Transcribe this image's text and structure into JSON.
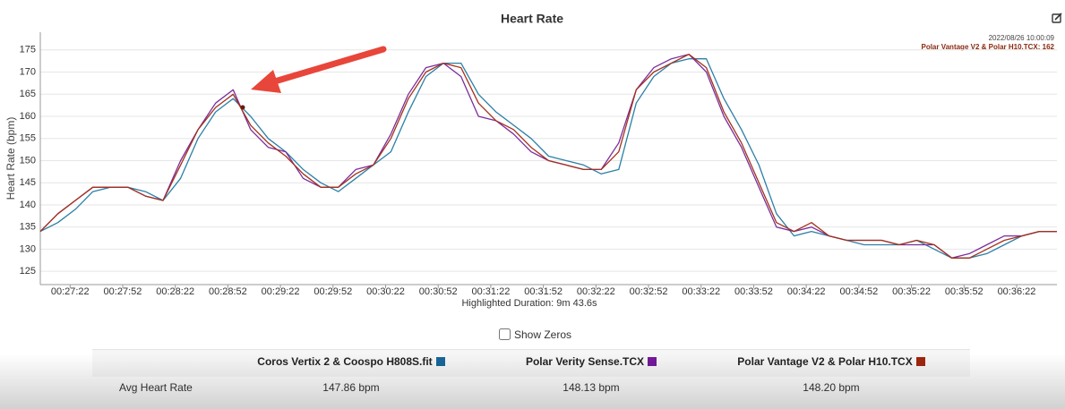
{
  "chart_data": {
    "type": "line",
    "title": "Heart Rate",
    "y_label": "Heart Rate (bpm)",
    "x_label": "Highlighted Duration: 9m 43.6s",
    "x": [
      "00:27:05",
      "00:27:15",
      "00:27:25",
      "00:27:35",
      "00:27:45",
      "00:27:55",
      "00:28:05",
      "00:28:15",
      "00:28:25",
      "00:28:35",
      "00:28:45",
      "00:28:55",
      "00:29:05",
      "00:29:15",
      "00:29:25",
      "00:29:35",
      "00:29:45",
      "00:29:55",
      "00:30:05",
      "00:30:15",
      "00:30:25",
      "00:30:35",
      "00:30:45",
      "00:30:55",
      "00:31:05",
      "00:31:15",
      "00:31:25",
      "00:31:35",
      "00:31:45",
      "00:31:55",
      "00:32:05",
      "00:32:15",
      "00:32:25",
      "00:32:35",
      "00:32:45",
      "00:32:55",
      "00:33:05",
      "00:33:15",
      "00:33:25",
      "00:33:35",
      "00:33:45",
      "00:33:55",
      "00:34:05",
      "00:34:15",
      "00:34:25",
      "00:34:35",
      "00:34:45",
      "00:34:55",
      "00:35:05",
      "00:35:15",
      "00:35:25",
      "00:35:35",
      "00:35:45",
      "00:35:55",
      "00:36:05",
      "00:36:15",
      "00:36:25",
      "00:36:35",
      "00:36:45"
    ],
    "series": [
      {
        "name": "Coros Vertix 2 & Coospo H808S.fit",
        "color": "#2b7fa6",
        "legend_color": "#17679a",
        "values": [
          134,
          136,
          139,
          143,
          144,
          144,
          143,
          141,
          146,
          155,
          161,
          164,
          160,
          155,
          152,
          148,
          145,
          143,
          146,
          149,
          152,
          161,
          169,
          172,
          172,
          165,
          161,
          158,
          155,
          151,
          150,
          149,
          147,
          148,
          163,
          169,
          172,
          173,
          173,
          164,
          157,
          149,
          138,
          133,
          134,
          133,
          132,
          131,
          131,
          131,
          132,
          130,
          128,
          128,
          129,
          131,
          133,
          134,
          134
        ]
      },
      {
        "name": "Polar Verity Sense.TCX",
        "color": "#7b2d9c",
        "legend_color": "#74199c",
        "values": [
          134,
          138,
          141,
          144,
          144,
          144,
          142,
          141,
          150,
          157,
          163,
          166,
          157,
          153,
          152,
          146,
          144,
          144,
          148,
          149,
          156,
          165,
          171,
          172,
          169,
          160,
          159,
          156,
          152,
          150,
          149,
          148,
          148,
          154,
          166,
          171,
          173,
          174,
          170,
          160,
          153,
          144,
          135,
          134,
          135,
          133,
          132,
          132,
          132,
          131,
          131,
          131,
          128,
          129,
          131,
          133,
          133,
          134,
          134
        ]
      },
      {
        "name": "Polar Vantage V2 & Polar H10.TCX",
        "color": "#a3311c",
        "legend_color": "#a1260e",
        "values": [
          134,
          138,
          141,
          144,
          144,
          144,
          142,
          141,
          149,
          157,
          162,
          165,
          158,
          154,
          151,
          147,
          144,
          144,
          147,
          149,
          155,
          164,
          170,
          172,
          171,
          163,
          159,
          157,
          153,
          150,
          149,
          148,
          148,
          152,
          166,
          170,
          172,
          174,
          171,
          161,
          154,
          145,
          136,
          134,
          136,
          133,
          132,
          132,
          132,
          131,
          132,
          131,
          128,
          128,
          130,
          132,
          133,
          134,
          134
        ]
      }
    ],
    "xlim": [
      "00:27:05",
      "00:36:45"
    ],
    "xticks": [
      "00:27:22",
      "00:27:52",
      "00:28:22",
      "00:28:52",
      "00:29:22",
      "00:29:52",
      "00:30:22",
      "00:30:52",
      "00:31:22",
      "00:31:52",
      "00:32:22",
      "00:32:52",
      "00:33:22",
      "00:33:52",
      "00:34:22",
      "00:34:52",
      "00:35:22",
      "00:35:52",
      "00:36:22"
    ],
    "ylim": [
      122,
      179
    ],
    "yticks": [
      125,
      130,
      135,
      140,
      145,
      150,
      155,
      160,
      165,
      170,
      175
    ],
    "grid": true,
    "tooltip": {
      "date": "2022/08/26 10:00:09",
      "label": "Polar Vantage V2 & Polar H10.TCX: 162"
    }
  },
  "controls": {
    "show_zeros": "Show Zeros"
  },
  "table": {
    "row_label": "Avg Heart Rate",
    "values": [
      "147.86 bpm",
      "148.13 bpm",
      "148.20 bpm"
    ]
  }
}
